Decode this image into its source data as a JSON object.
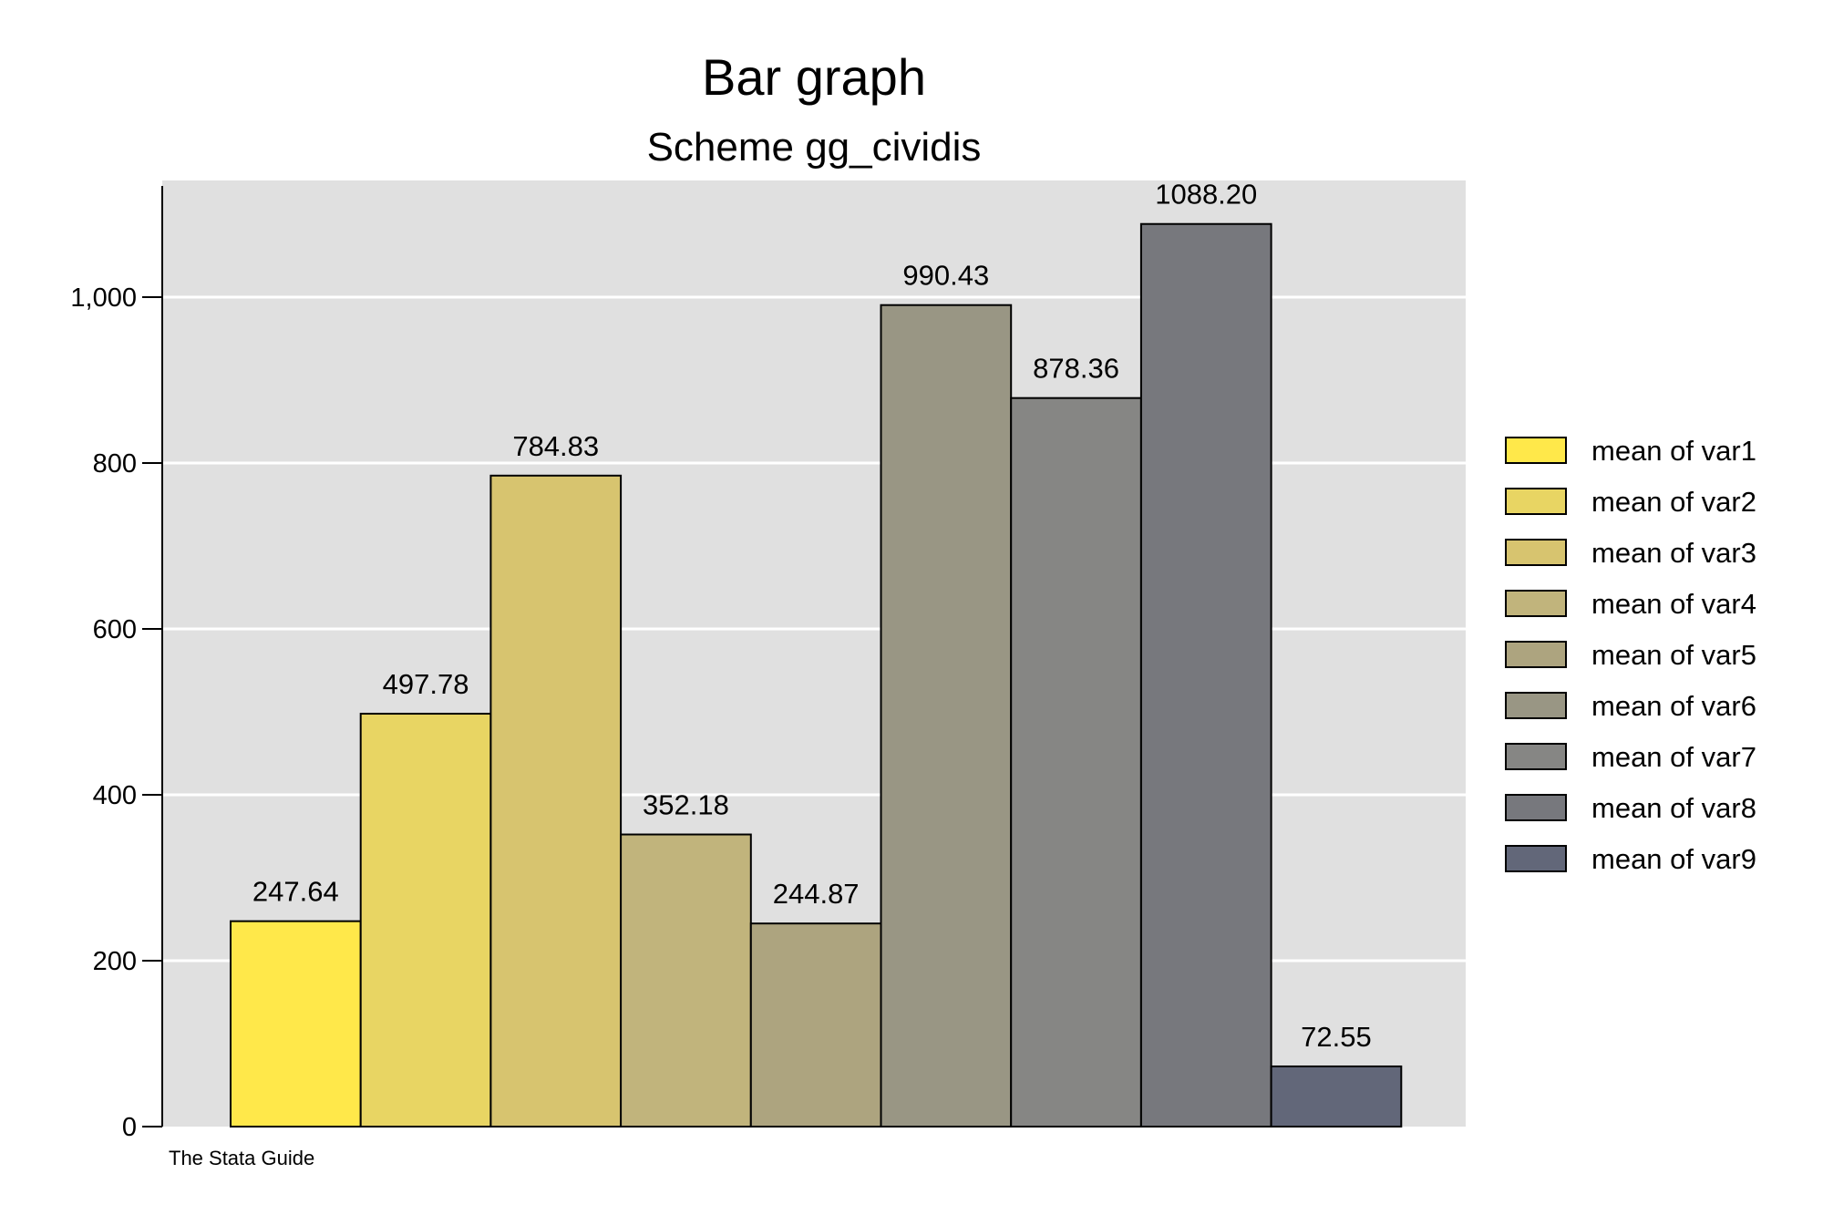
{
  "chart_data": {
    "type": "bar",
    "title": "Bar graph",
    "subtitle": "Scheme gg_cividis",
    "note": "The Stata Guide",
    "ylim": [
      0,
      1134
    ],
    "yticks": [
      0,
      200,
      400,
      600,
      800,
      1000
    ],
    "ytick_labels": [
      "0",
      "200",
      "400",
      "600",
      "800",
      "1,000"
    ],
    "grid": true,
    "legend_position": "right",
    "series": [
      {
        "name": "mean of var1",
        "value": 247.64,
        "label": "247.64",
        "color": "#FFE84A"
      },
      {
        "name": "mean of var2",
        "value": 497.78,
        "label": "497.78",
        "color": "#E8D563"
      },
      {
        "name": "mean of var3",
        "value": 784.83,
        "label": "784.83",
        "color": "#D7C46F"
      },
      {
        "name": "mean of var4",
        "value": 352.18,
        "label": "352.18",
        "color": "#C1B47C"
      },
      {
        "name": "mean of var5",
        "value": 244.87,
        "label": "244.87",
        "color": "#ADA47F"
      },
      {
        "name": "mean of var6",
        "value": 990.43,
        "label": "990.43",
        "color": "#999684"
      },
      {
        "name": "mean of var7",
        "value": 878.36,
        "label": "878.36",
        "color": "#868684"
      },
      {
        "name": "mean of var8",
        "value": 1088.2,
        "label": "1088.20",
        "color": "#77787D"
      },
      {
        "name": "mean of var9",
        "value": 72.55,
        "label": "72.55",
        "color": "#626779"
      }
    ],
    "colors": {
      "plot_background": "#E0E0E0",
      "grid": "#FFFFFF",
      "bar_outline": "#000000"
    }
  }
}
